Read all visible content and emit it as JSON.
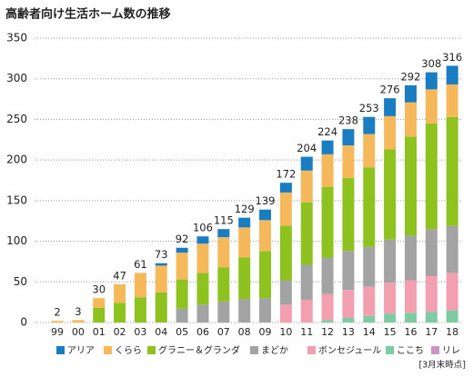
{
  "chart_data": {
    "type": "stacked_bar",
    "title": "高齢者向け生活ホーム数の推移",
    "note": "[3月末時点]",
    "categories": [
      "99",
      "00",
      "01",
      "02",
      "03",
      "04",
      "05",
      "06",
      "07",
      "08",
      "09",
      "10",
      "11",
      "12",
      "13",
      "14",
      "15",
      "16",
      "17",
      "18"
    ],
    "totals": [
      2,
      3,
      30,
      47,
      61,
      73,
      92,
      106,
      115,
      129,
      139,
      172,
      204,
      224,
      238,
      253,
      276,
      292,
      308,
      316
    ],
    "series": [
      {
        "name": "リレ",
        "color": "#c994c7",
        "values": [
          null,
          null,
          null,
          null,
          null,
          null,
          null,
          null,
          null,
          null,
          null,
          null,
          null,
          null,
          null,
          null,
          null,
          null,
          null,
          null
        ]
      },
      {
        "name": "ここち",
        "color": "#7ccba2",
        "values": [
          null,
          null,
          null,
          null,
          null,
          null,
          null,
          null,
          null,
          null,
          null,
          null,
          null,
          3,
          6,
          8,
          11,
          12,
          13,
          15
        ]
      },
      {
        "name": "ボンセジュール",
        "color": "#f29fb0",
        "values": [
          null,
          null,
          null,
          null,
          null,
          null,
          null,
          null,
          null,
          null,
          null,
          22,
          28,
          32,
          34,
          36,
          38,
          40,
          44,
          46
        ]
      },
      {
        "name": "まどか",
        "color": "#a3a3a3",
        "values": [
          null,
          null,
          null,
          null,
          null,
          null,
          17,
          22,
          26,
          29,
          30,
          30,
          43,
          45,
          48,
          49,
          53,
          55,
          58,
          58
        ]
      },
      {
        "name": "グラニー＆グランダ",
        "color": "#8dc21f",
        "values": [
          null,
          null,
          18,
          24,
          31,
          37,
          36,
          39,
          42,
          51,
          58,
          67,
          77,
          87,
          90,
          98,
          111,
          122,
          130,
          134
        ]
      },
      {
        "name": "くらら",
        "color": "#f5b95b",
        "values": [
          2,
          3,
          12,
          23,
          30,
          33,
          33,
          36,
          37,
          37,
          38,
          41,
          39,
          40,
          40,
          41,
          41,
          42,
          42,
          40
        ]
      },
      {
        "name": "アリア",
        "color": "#1a7cc1",
        "values": [
          null,
          null,
          null,
          null,
          null,
          3,
          6,
          9,
          10,
          12,
          13,
          12,
          17,
          17,
          20,
          21,
          22,
          21,
          21,
          23
        ]
      }
    ],
    "ylim": [
      0,
      350
    ],
    "yticks": [
      0,
      50,
      100,
      150,
      200,
      250,
      300,
      350
    ],
    "grid": true
  }
}
